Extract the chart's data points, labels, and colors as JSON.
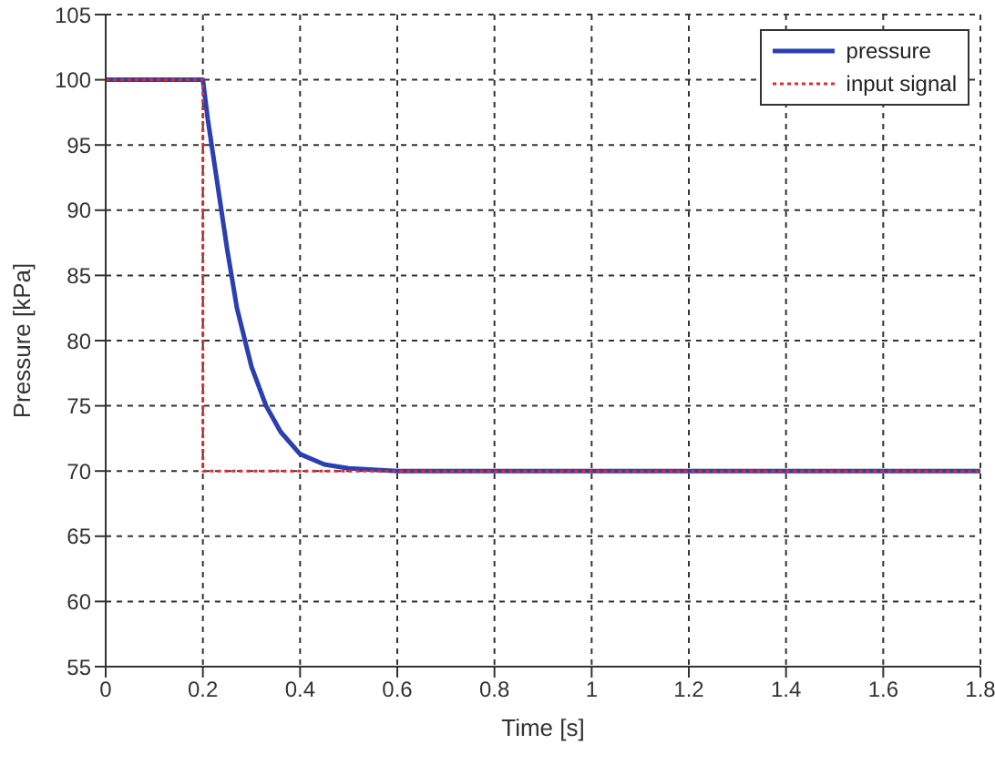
{
  "chart_data": {
    "type": "line",
    "xlabel": "Time [s]",
    "ylabel": "Pressure [kPa]",
    "xlim": [
      0,
      1.8
    ],
    "xticks": [
      0,
      0.2,
      0.4,
      0.6,
      0.8,
      1,
      1.2,
      1.4,
      1.6,
      1.8
    ],
    "ylim": [
      55,
      105
    ],
    "yticks": [
      55,
      60,
      65,
      70,
      75,
      80,
      85,
      90,
      95,
      100,
      105
    ],
    "grid": true,
    "legend": "top right",
    "marker": "none",
    "series": [
      {
        "name": "pressure",
        "color": "#2a3fb0",
        "line_style": "solid",
        "x": [
          0,
          0.2,
          0.21,
          0.23,
          0.25,
          0.27,
          0.3,
          0.33,
          0.36,
          0.4,
          0.45,
          0.5,
          0.6,
          1.8
        ],
        "values": [
          100,
          100,
          97,
          92,
          87,
          82.5,
          78,
          75,
          73,
          71.3,
          70.5,
          70.2,
          70,
          70
        ]
      },
      {
        "name": "input signal",
        "color": "#e8282a",
        "line_style": "dotted",
        "x": [
          0,
          0.2,
          0.2,
          1.8
        ],
        "values": [
          100,
          100,
          70,
          70
        ]
      }
    ]
  }
}
